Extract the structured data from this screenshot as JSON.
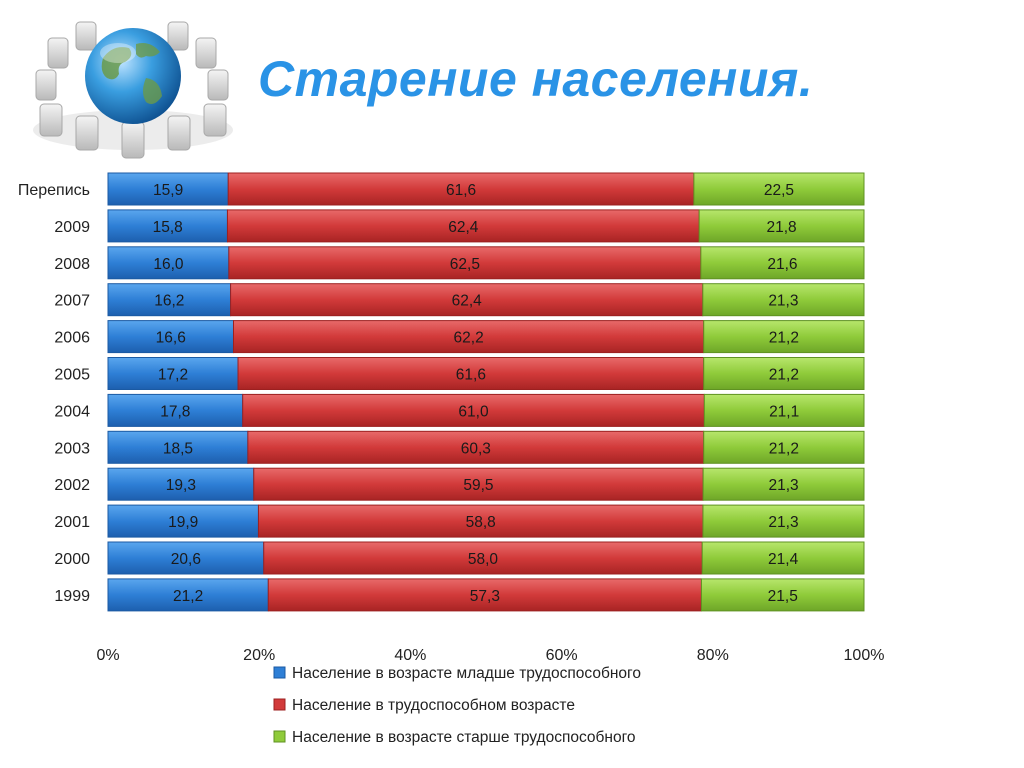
{
  "title": "Старение населения.",
  "logo_icon": "globe-with-office-chairs-icon",
  "colors": {
    "title": "#2a93e6",
    "young": "#2e7fd6",
    "working": "#d23a3a",
    "old": "#8fcb3a"
  },
  "chart_data": {
    "type": "bar",
    "orientation": "horizontal",
    "stacked": "percent",
    "categories": [
      "Перепись",
      "2009",
      "2008",
      "2007",
      "2006",
      "2005",
      "2004",
      "2003",
      "2002",
      "2001",
      "2000",
      "1999"
    ],
    "series": [
      {
        "name": "Население в возрасте младше трудоспособного",
        "values": [
          15.9,
          15.8,
          16.0,
          16.2,
          16.6,
          17.2,
          17.8,
          18.5,
          19.3,
          19.9,
          20.6,
          21.2
        ],
        "labels": [
          "15,9",
          "15,8",
          "16,0",
          "16,2",
          "16,6",
          "17,2",
          "17,8",
          "18,5",
          "19,3",
          "19,9",
          "20,6",
          "21,2"
        ]
      },
      {
        "name": "Население в трудоспособном возрасте",
        "values": [
          61.6,
          62.4,
          62.5,
          62.4,
          62.2,
          61.6,
          61.0,
          60.3,
          59.5,
          58.8,
          58.0,
          57.3
        ],
        "labels": [
          "61,6",
          "62,4",
          "62,5",
          "62,4",
          "62,2",
          "61,6",
          "61,0",
          "60,3",
          "59,5",
          "58,8",
          "58,0",
          "57,3"
        ]
      },
      {
        "name": "Население в возрасте старше трудоспособного",
        "values": [
          22.5,
          21.8,
          21.6,
          21.3,
          21.2,
          21.2,
          21.1,
          21.2,
          21.3,
          21.3,
          21.4,
          21.5
        ],
        "labels": [
          "22,5",
          "21,8",
          "21,6",
          "21,3",
          "21,2",
          "21,2",
          "21,1",
          "21,2",
          "21,3",
          "21,3",
          "21,4",
          "21,5"
        ]
      }
    ],
    "x_ticks": [
      "0%",
      "20%",
      "40%",
      "60%",
      "80%",
      "100%"
    ],
    "xlim": [
      0,
      100
    ],
    "grid": false,
    "legend_position": "bottom"
  }
}
